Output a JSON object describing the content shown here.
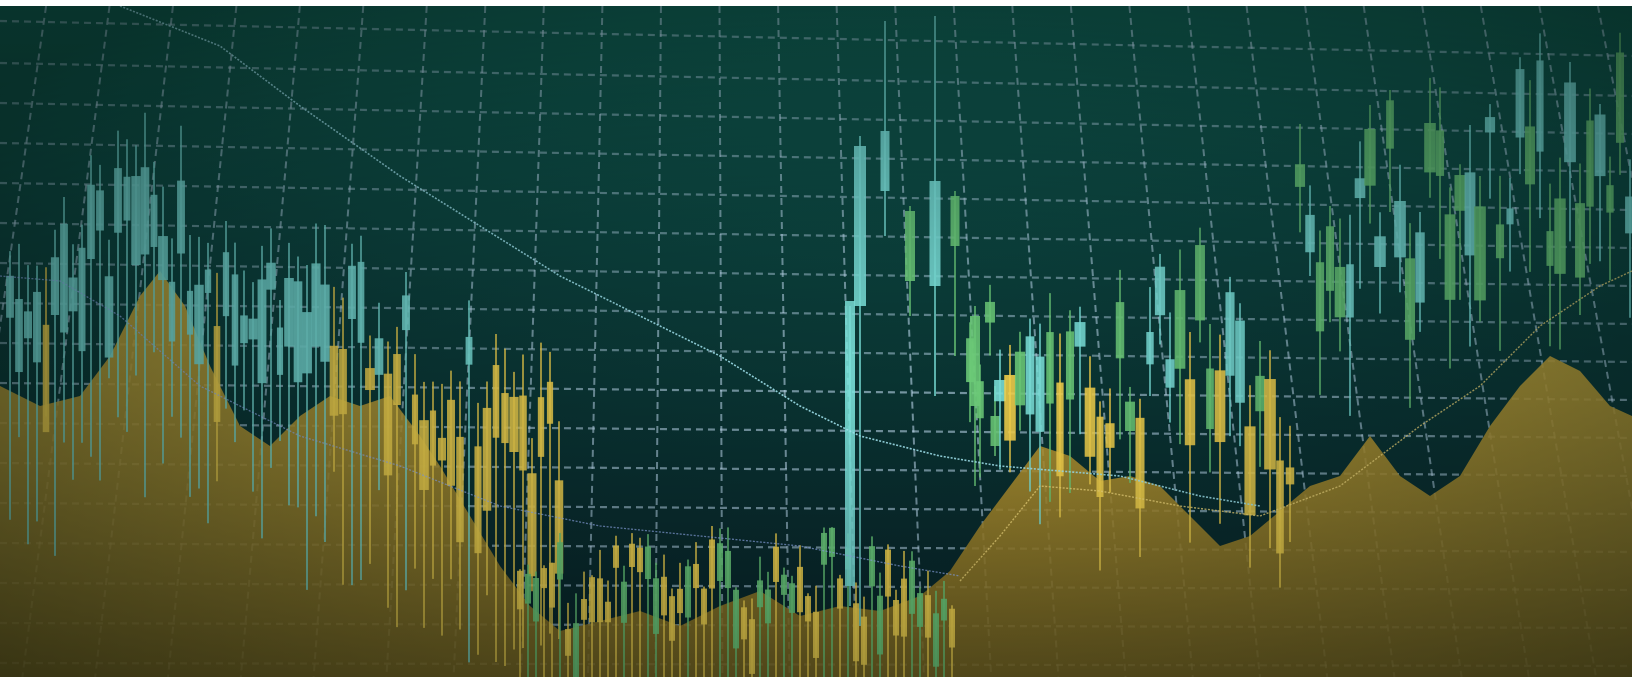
{
  "image": {
    "subject": "stock-market-candlestick-screen",
    "palette": {
      "background_top": "#0f5a4c",
      "background_bottom": "#05161a",
      "grid": "#cfe9ff",
      "area_fill": "#c9a12a",
      "candle_cyan": "#7fe8e0",
      "candle_green": "#6fd07a",
      "candle_yellow": "#ffd84a",
      "trend_line": "#9fe6f5"
    }
  }
}
